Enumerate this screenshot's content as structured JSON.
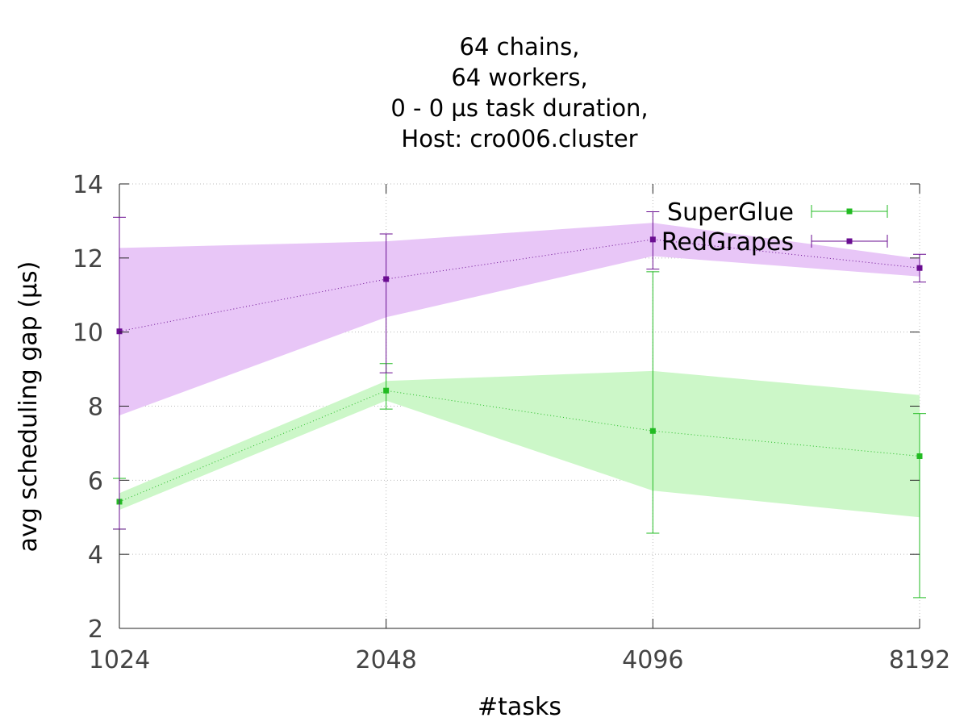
{
  "chart_data": {
    "type": "line",
    "title_lines": [
      "64 chains,",
      "64 workers,",
      "0 - 0 µs task duration,",
      "Host: cro006.cluster"
    ],
    "xlabel": "#tasks",
    "ylabel": "avg scheduling gap (µs)",
    "x_tick_labels": [
      "1024",
      "2048",
      "4096",
      "8192"
    ],
    "y_ticks": [
      2,
      4,
      6,
      8,
      10,
      12,
      14
    ],
    "ylim": [
      2,
      14
    ],
    "grid": true,
    "legend_position": "top-right",
    "series": [
      {
        "name": "SuperGlue",
        "color": "#22bb22",
        "band_color": "#ccf7c8",
        "y": [
          5.42,
          8.42,
          7.33,
          6.65
        ],
        "band_low": [
          5.2,
          8.15,
          5.72,
          5.0
        ],
        "band_high": [
          5.65,
          8.68,
          8.95,
          8.3
        ],
        "err_low": [
          4.68,
          7.92,
          4.57,
          2.83
        ],
        "err_high": [
          6.05,
          9.15,
          11.63,
          7.8
        ]
      },
      {
        "name": "RedGrapes",
        "color": "#6a0d91",
        "band_color": "#e8c6f7",
        "y": [
          10.02,
          11.43,
          12.5,
          11.73
        ],
        "band_low": [
          7.75,
          10.4,
          12.05,
          11.5
        ],
        "band_high": [
          12.27,
          12.45,
          12.95,
          11.98
        ],
        "err_low": [
          4.68,
          8.9,
          11.7,
          11.35
        ],
        "err_high": [
          13.1,
          12.65,
          13.25,
          12.1
        ]
      }
    ]
  }
}
